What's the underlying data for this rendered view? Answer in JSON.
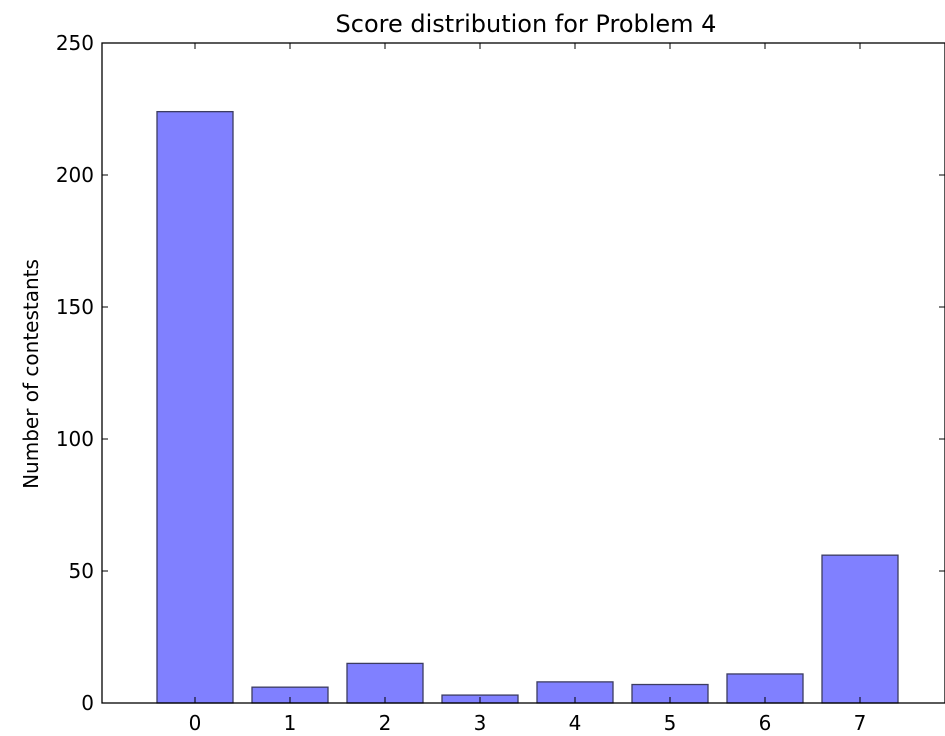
{
  "chart_data": {
    "type": "bar",
    "title": "Score distribution for Problem 4",
    "xlabel": "",
    "ylabel": "Number of contestants",
    "categories": [
      "0",
      "1",
      "2",
      "3",
      "4",
      "5",
      "6",
      "7"
    ],
    "values": [
      224,
      6,
      15,
      3,
      8,
      7,
      11,
      56
    ],
    "ylim": [
      0,
      250
    ],
    "yticks": [
      "0",
      "50",
      "100",
      "150",
      "200",
      "250"
    ],
    "bar_color": "#8080ff",
    "grid": false,
    "legend": "none"
  }
}
